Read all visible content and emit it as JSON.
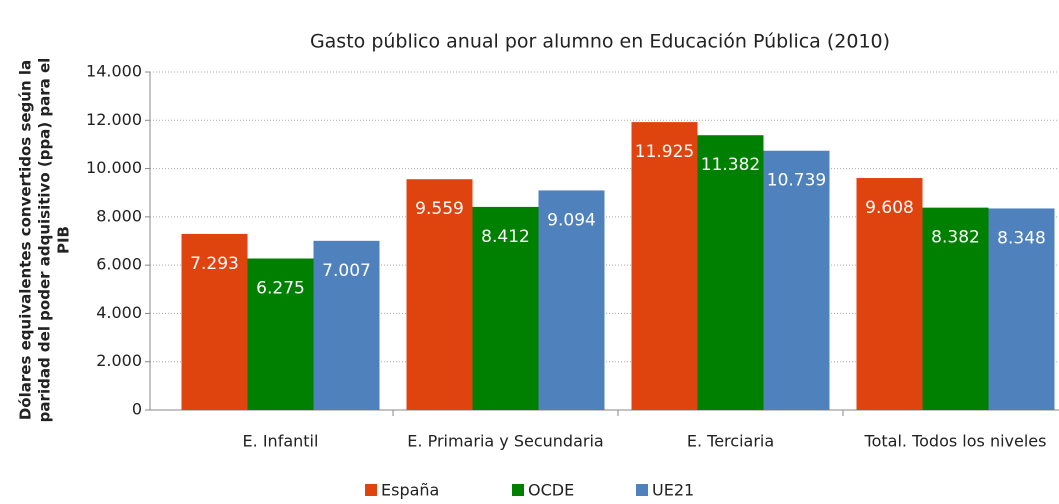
{
  "chart_data": {
    "type": "bar",
    "title": "Gasto público anual por alumno en Educación Pública (2010)",
    "y_label": "Dólares equivalentes convertidos según la paridad del poder adquisitivo (ppa) para el PIB",
    "categories": [
      "E. Infantil",
      "E. Primaria y Secundaria",
      "E. Terciaria",
      "Total. Todos los niveles"
    ],
    "series": [
      {
        "name": "España",
        "color": "#e0440e",
        "values": [
          7293,
          9559,
          11925,
          9608
        ],
        "value_labels": [
          "7.293",
          "9.559",
          "11.925",
          "9.608"
        ]
      },
      {
        "name": "OCDE",
        "color": "#008000",
        "values": [
          6275,
          8412,
          11382,
          8382
        ],
        "value_labels": [
          "6.275",
          "8.412",
          "11.382",
          "8.382"
        ]
      },
      {
        "name": "UE21",
        "color": "#4f81bd",
        "values": [
          7007,
          9094,
          10739,
          8348
        ],
        "value_labels": [
          "7.007",
          "9.094",
          "10.739",
          "8.348"
        ]
      }
    ],
    "ylim": [
      0,
      14000
    ],
    "yticks": [
      0,
      {
        "value": 2000,
        "label": "2.000"
      },
      {
        "value": 4000,
        "label": "4.000"
      },
      {
        "value": 6000,
        "label": "6.000"
      },
      {
        "value": 8000,
        "label": "8.000"
      },
      {
        "value": 10000,
        "label": "10.000"
      },
      {
        "value": 12000,
        "label": "12.000"
      },
      {
        "value": 14000,
        "label": "14.000"
      }
    ],
    "grid": true,
    "legend": "bottom"
  }
}
